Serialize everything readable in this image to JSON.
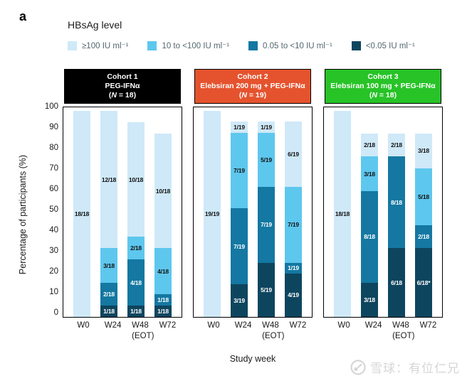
{
  "watermark": {
    "text": "雪球：有位仁兄"
  },
  "chart_data": {
    "type": "bar",
    "stacked": true,
    "panel_label": "a",
    "legend_title": "HBsAg level",
    "xlabel": "Study week",
    "ylabel": "Percentage of participants (%)",
    "ylim": [
      0,
      100
    ],
    "yticks": [
      0,
      10,
      20,
      30,
      40,
      50,
      60,
      70,
      80,
      90,
      100
    ],
    "grid": false,
    "legend_position": "top",
    "levels": [
      {
        "label": "≥100 IU ml⁻¹",
        "color": "#cfe9f8",
        "text_color": "#111111"
      },
      {
        "label": "10 to <100 IU ml⁻¹",
        "color": "#5ec7ee",
        "text_color": "#111111"
      },
      {
        "label": "0.05 to <10 IU ml⁻¹",
        "color": "#1478a2",
        "text_color": "#ffffff"
      },
      {
        "label": "<0.05 IU ml⁻¹",
        "color": "#0e455e",
        "text_color": "#ffffff"
      }
    ],
    "weeks": [
      {
        "label": "W0"
      },
      {
        "label": "W24"
      },
      {
        "label": "W48",
        "sub": "(EOT)"
      },
      {
        "label": "W72"
      }
    ],
    "cohorts": [
      {
        "name": "Cohort 1",
        "treatment": "PEG-IFNα",
        "n_label": "(N = 18)",
        "header_color": "#000000",
        "bars": [
          {
            "week": "W0",
            "segments": [
              {
                "level": 0,
                "label": "18/18",
                "pct": 100
              }
            ]
          },
          {
            "week": "W24",
            "segments": [
              {
                "level": 3,
                "label": "1/18",
                "pct": 5.56
              },
              {
                "level": 2,
                "label": "2/18",
                "pct": 11.11
              },
              {
                "level": 1,
                "label": "3/18",
                "pct": 16.67
              },
              {
                "level": 0,
                "label": "12/18",
                "pct": 66.67
              }
            ]
          },
          {
            "week": "W48",
            "segments": [
              {
                "level": 3,
                "label": "1/18",
                "pct": 5.56
              },
              {
                "level": 2,
                "label": "4/18",
                "pct": 22.22
              },
              {
                "level": 1,
                "label": "2/18",
                "pct": 11.11
              },
              {
                "level": 0,
                "label": "10/18",
                "pct": 55.56
              }
            ]
          },
          {
            "week": "W72",
            "segments": [
              {
                "level": 3,
                "label": "1/18",
                "pct": 5.56
              },
              {
                "level": 2,
                "label": "1/18",
                "pct": 5.56
              },
              {
                "level": 1,
                "label": "4/18",
                "pct": 22.22
              },
              {
                "level": 0,
                "label": "10/18",
                "pct": 55.56
              }
            ]
          }
        ]
      },
      {
        "name": "Cohort 2",
        "treatment": "Elebsiran 200 mg + PEG-IFNα",
        "n_label": "(N = 19)",
        "header_color": "#e5532e",
        "bars": [
          {
            "week": "W0",
            "segments": [
              {
                "level": 0,
                "label": "19/19",
                "pct": 100
              }
            ]
          },
          {
            "week": "W24",
            "segments": [
              {
                "level": 3,
                "label": "3/19",
                "pct": 15.79
              },
              {
                "level": 2,
                "label": "7/19",
                "pct": 36.84
              },
              {
                "level": 1,
                "label": "7/19",
                "pct": 36.84
              },
              {
                "level": 0,
                "label": "1/19",
                "pct": 5.26
              }
            ]
          },
          {
            "week": "W48",
            "segments": [
              {
                "level": 3,
                "label": "5/19",
                "pct": 26.32
              },
              {
                "level": 2,
                "label": "7/19",
                "pct": 36.84
              },
              {
                "level": 1,
                "label": "5/19",
                "pct": 26.32
              },
              {
                "level": 0,
                "label": "1/19",
                "pct": 5.26
              }
            ]
          },
          {
            "week": "W72",
            "segments": [
              {
                "level": 3,
                "label": "4/19",
                "pct": 21.05
              },
              {
                "level": 2,
                "label": "1/19",
                "pct": 5.26
              },
              {
                "level": 1,
                "label": "7/19",
                "pct": 36.84
              },
              {
                "level": 0,
                "label": "6/19",
                "pct": 31.58
              }
            ]
          }
        ]
      },
      {
        "name": "Cohort 3",
        "treatment": "Elebsiran 100 mg + PEG-IFNα",
        "n_label": "(N = 18)",
        "header_color": "#27c327",
        "bars": [
          {
            "week": "W0",
            "segments": [
              {
                "level": 0,
                "label": "18/18",
                "pct": 100
              }
            ]
          },
          {
            "week": "W24",
            "segments": [
              {
                "level": 3,
                "label": "3/18",
                "pct": 16.67
              },
              {
                "level": 2,
                "label": "8/18",
                "pct": 44.44
              },
              {
                "level": 1,
                "label": "3/18",
                "pct": 16.67
              },
              {
                "level": 0,
                "label": "2/18",
                "pct": 11.11
              }
            ]
          },
          {
            "week": "W48",
            "segments": [
              {
                "level": 3,
                "label": "6/18",
                "pct": 33.33
              },
              {
                "level": 2,
                "label": "8/18",
                "pct": 44.44
              },
              {
                "level": 0,
                "label": "2/18",
                "pct": 11.11
              }
            ]
          },
          {
            "week": "W72",
            "segments": [
              {
                "level": 3,
                "label": "6/18*",
                "pct": 33.33
              },
              {
                "level": 2,
                "label": "2/18",
                "pct": 11.11
              },
              {
                "level": 1,
                "label": "5/18",
                "pct": 27.78
              },
              {
                "level": 0,
                "label": "3/18",
                "pct": 16.67
              }
            ]
          }
        ]
      }
    ]
  }
}
